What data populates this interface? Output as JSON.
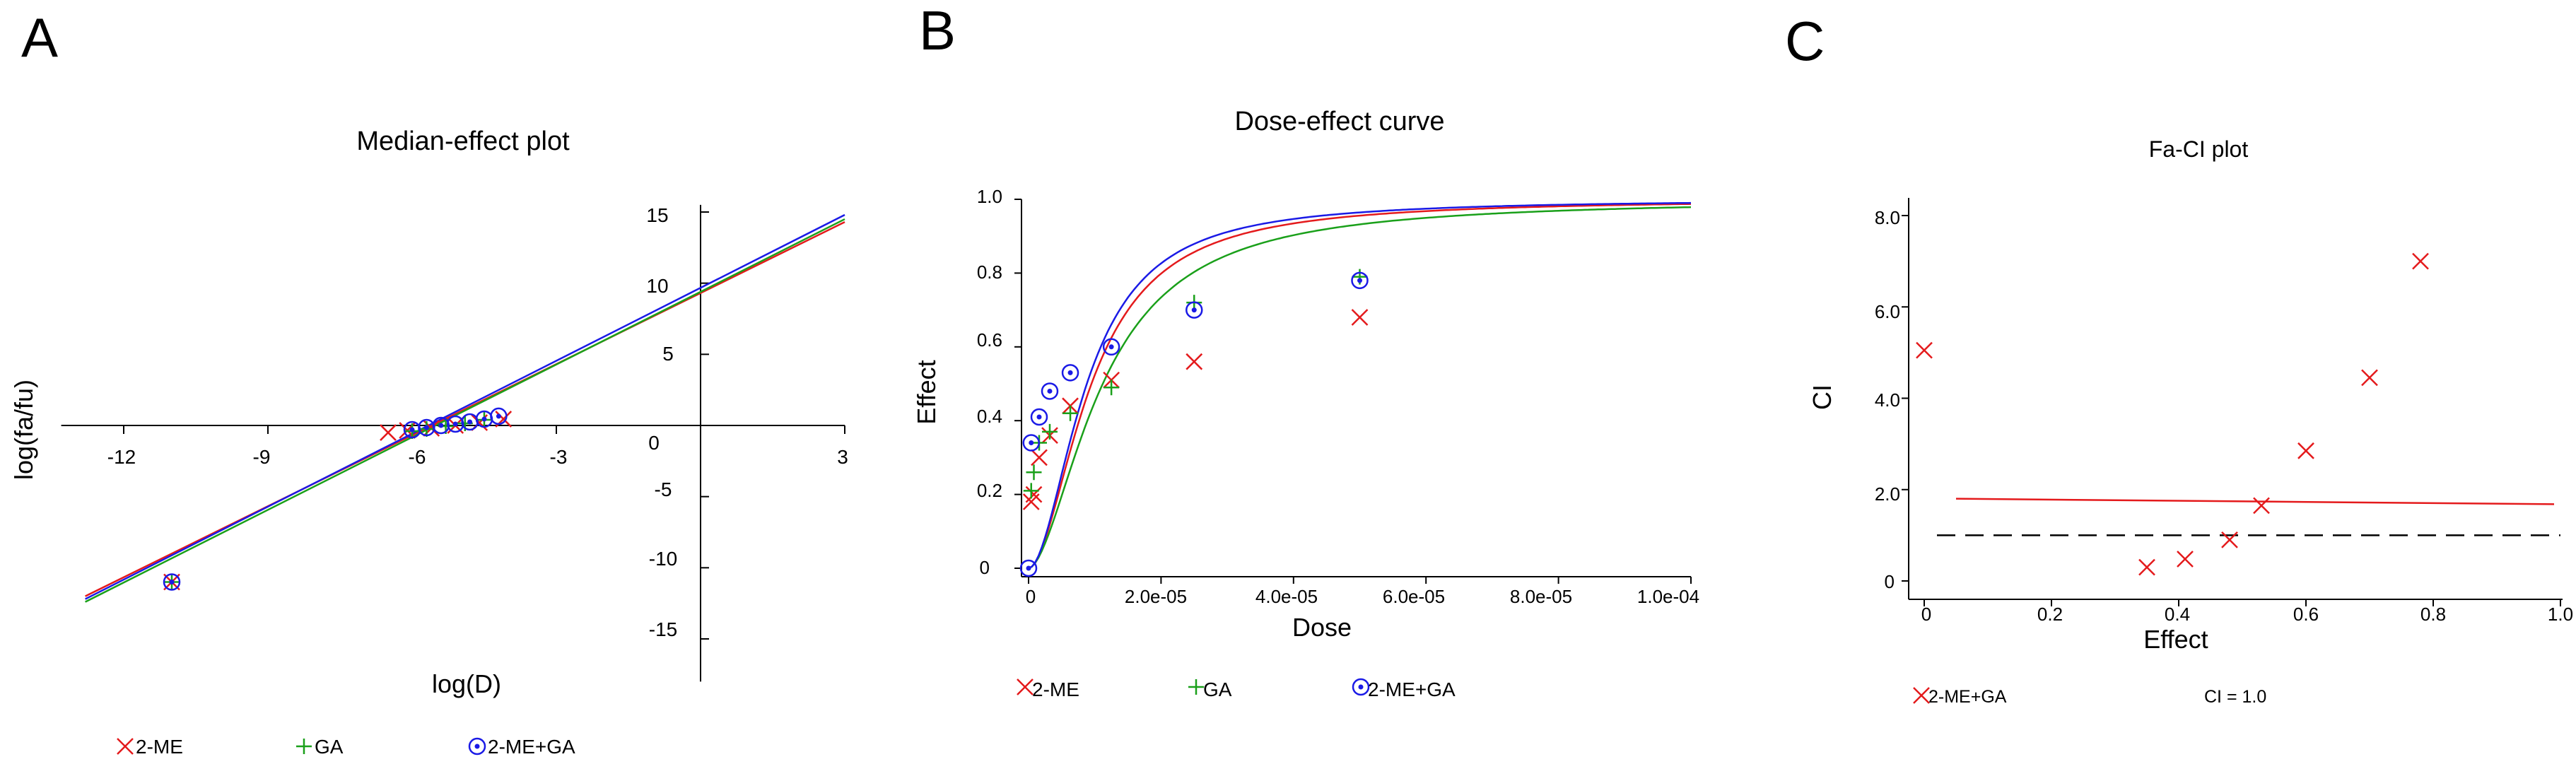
{
  "colors": {
    "2-ME": "#e41a1c",
    "GA": "#1aa01a",
    "2-ME+GA": "#1a1ae6",
    "axis": "#000000"
  },
  "chart_data": [
    {
      "panel": "A",
      "type": "line",
      "title": "Median-effect plot",
      "xlabel": "log(D)",
      "ylabel": "log(fa/fu)",
      "xlim": [
        -13,
        3
      ],
      "ylim": [
        -18,
        16
      ],
      "x_ticks": [
        -12,
        -9,
        -6,
        -3,
        0,
        3
      ],
      "y_ticks": [
        -15,
        -10,
        -5,
        5,
        10,
        15
      ],
      "legend_position": "bottom",
      "series": [
        {
          "name": "2-ME",
          "line": [
            [
              -12.8,
              -12.0
            ],
            [
              3.0,
              14.3
            ]
          ],
          "points": [
            [
              -11.0,
              -11.0
            ],
            [
              -6.5,
              -0.5
            ],
            [
              -6.1,
              -0.35
            ],
            [
              -5.6,
              -0.2
            ],
            [
              -5.1,
              0.0
            ],
            [
              -4.6,
              0.2
            ],
            [
              -4.1,
              0.45
            ]
          ]
        },
        {
          "name": "GA",
          "line": [
            [
              -12.8,
              -12.4
            ],
            [
              3.0,
              14.5
            ]
          ],
          "points": [
            [
              -11.0,
              -11.0
            ],
            [
              -6.0,
              -0.4
            ],
            [
              -5.7,
              -0.25
            ],
            [
              -5.3,
              -0.05
            ],
            [
              -4.9,
              0.15
            ],
            [
              -4.5,
              0.4
            ]
          ]
        },
        {
          "name": "2-ME+GA",
          "line": [
            [
              -12.8,
              -12.2
            ],
            [
              3.0,
              14.8
            ]
          ],
          "points": [
            [
              -11.0,
              -11.0
            ],
            [
              -6.0,
              -0.3
            ],
            [
              -5.7,
              -0.15
            ],
            [
              -5.4,
              0.0
            ],
            [
              -5.1,
              0.1
            ],
            [
              -4.8,
              0.25
            ],
            [
              -4.5,
              0.45
            ],
            [
              -4.2,
              0.65
            ]
          ]
        }
      ]
    },
    {
      "panel": "B",
      "type": "line",
      "title": "Dose-effect curve",
      "xlabel": "Dose",
      "ylabel": "Effect",
      "xlim": [
        0,
        0.0001
      ],
      "ylim": [
        0,
        1.0
      ],
      "x_ticks": [
        0,
        2e-05,
        4e-05,
        6e-05,
        8e-05,
        0.0001
      ],
      "x_tick_labels": [
        "0",
        "2.0e-05",
        "4.0e-05",
        "6.0e-05",
        "8.0e-05",
        "1.0e-04"
      ],
      "y_ticks": [
        0,
        0.2,
        0.4,
        0.6,
        0.8,
        1.0
      ],
      "y_tick_labels": [
        "0",
        "0.2",
        "0.4",
        "0.6",
        "0.8",
        "1.0"
      ],
      "legend_position": "bottom",
      "series": [
        {
          "name": "2-ME",
          "dm": 9.5e-06,
          "m": 1.85,
          "points": [
            [
              4e-07,
              0.18
            ],
            [
              8e-07,
              0.2
            ],
            [
              1.6e-06,
              0.3
            ],
            [
              3.2e-06,
              0.36
            ],
            [
              6.3e-06,
              0.44
            ],
            [
              1.25e-05,
              0.51
            ],
            [
              2.5e-05,
              0.56
            ],
            [
              5e-05,
              0.68
            ]
          ]
        },
        {
          "name": "GA",
          "dm": 1.12e-05,
          "m": 1.75,
          "points": [
            [
              4e-07,
              0.21
            ],
            [
              8e-07,
              0.26
            ],
            [
              1.6e-06,
              0.34
            ],
            [
              3.2e-06,
              0.37
            ],
            [
              6.3e-06,
              0.42
            ],
            [
              1.25e-05,
              0.49
            ],
            [
              2.5e-05,
              0.72
            ],
            [
              5e-05,
              0.79
            ]
          ]
        },
        {
          "name": "2-ME+GA",
          "dm": 8.8e-06,
          "m": 1.9,
          "points": [
            [
              0.0,
              0.0
            ],
            [
              4e-07,
              0.34
            ],
            [
              1.6e-06,
              0.41
            ],
            [
              3.2e-06,
              0.48
            ],
            [
              6.3e-06,
              0.53
            ],
            [
              1.25e-05,
              0.6
            ],
            [
              2.5e-05,
              0.7
            ],
            [
              5e-05,
              0.78
            ]
          ]
        }
      ]
    },
    {
      "panel": "C",
      "type": "scatter",
      "title": "Fa-CI plot",
      "xlabel": "Effect",
      "ylabel": "CI",
      "xlim": [
        0,
        1.0
      ],
      "ylim": [
        0,
        8.0
      ],
      "x_ticks": [
        0,
        0.2,
        0.4,
        0.6,
        0.8,
        1.0
      ],
      "x_tick_labels": [
        "0",
        "0.2",
        "0.4",
        "0.6",
        "0.8",
        "1.0"
      ],
      "y_ticks": [
        0,
        2.0,
        4.0,
        6.0,
        8.0
      ],
      "y_tick_labels": [
        "0",
        "2.0",
        "4.0",
        "6.0",
        "8.0"
      ],
      "reference_line": {
        "name": "CI = 1.0",
        "y": 1.0,
        "style": "dashed"
      },
      "fit_line": [
        [
          0.05,
          1.8
        ],
        [
          0.99,
          1.68
        ]
      ],
      "legend_position": "bottom",
      "series": [
        {
          "name": "2-ME+GA",
          "points": [
            [
              0.0,
              5.05
            ],
            [
              0.35,
              0.3
            ],
            [
              0.41,
              0.48
            ],
            [
              0.48,
              0.9
            ],
            [
              0.53,
              1.65
            ],
            [
              0.6,
              2.85
            ],
            [
              0.7,
              4.45
            ],
            [
              0.78,
              7.0
            ]
          ]
        }
      ]
    }
  ],
  "panels": {
    "A": {
      "letter": "A",
      "title": "Median-effect plot",
      "xlabel": "log(D)",
      "ylabel": "log(fa/fu)",
      "x_ticks": [
        "-12",
        "-9",
        "-6",
        "-3",
        "0",
        "3"
      ],
      "y_ticks": [
        "15",
        "10",
        "5",
        "-5",
        "-10",
        "-15"
      ],
      "legend": [
        "2-ME",
        "GA",
        "2-ME+GA"
      ]
    },
    "B": {
      "letter": "B",
      "title": "Dose-effect curve",
      "xlabel": "Dose",
      "ylabel": "Effect",
      "x_ticks": [
        "0",
        "2.0e-05",
        "4.0e-05",
        "6.0e-05",
        "8.0e-05",
        "1.0e-04"
      ],
      "y_ticks": [
        "1.0",
        "0.8",
        "0.6",
        "0.4",
        "0.2",
        "0"
      ],
      "legend": [
        "2-ME",
        "GA",
        "2-ME+GA"
      ]
    },
    "C": {
      "letter": "C",
      "title": "Fa-CI plot",
      "xlabel": "Effect",
      "ylabel": "CI",
      "x_ticks": [
        "0",
        "0.2",
        "0.4",
        "0.6",
        "0.8",
        "1.0"
      ],
      "y_ticks": [
        "8.0",
        "6.0",
        "4.0",
        "2.0",
        "0"
      ],
      "legend": [
        "2-ME+GA",
        "CI = 1.0"
      ]
    }
  }
}
